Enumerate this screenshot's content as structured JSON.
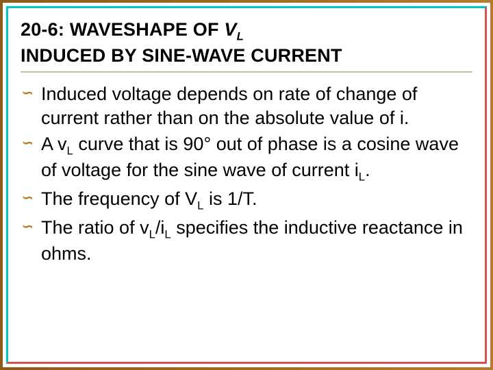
{
  "colors": {
    "outer_gradient_start": "#8c5a1a",
    "outer_gradient_end": "#b87a2e",
    "border_top_left": "#00c8c8",
    "border_bottom_right": "#d94f4f",
    "divider": "#cbbfa3",
    "bullet": "#b07e2e",
    "text": "#000000",
    "background": "#ffffff"
  },
  "typography": {
    "title_fontsize": 27,
    "title_fontweight": "bold",
    "body_fontsize": 27,
    "line_height": 1.28,
    "font_family": "Arial"
  },
  "title": {
    "line1_prefix": "20-6: WAVESHAPE OF ",
    "line1_var": "V",
    "line1_sub": "L",
    "line2": "INDUCED BY SINE-WAVE CURRENT"
  },
  "bullets": [
    {
      "parts": [
        {
          "t": "Induced voltage depends on rate of change of current rather than on the absolute value of i."
        }
      ]
    },
    {
      "parts": [
        {
          "t": "A v"
        },
        {
          "t": "L",
          "sub": true
        },
        {
          "t": " curve that is 90° out of phase is a cosine wave of voltage for the sine wave of current i"
        },
        {
          "t": "L",
          "sub": true
        },
        {
          "t": "."
        }
      ]
    },
    {
      "parts": [
        {
          "t": "The frequency of V"
        },
        {
          "t": "L",
          "sub": true
        },
        {
          "t": " is 1/T."
        }
      ]
    },
    {
      "parts": [
        {
          "t": "The ratio of v"
        },
        {
          "t": "L",
          "sub": true
        },
        {
          "t": "/i"
        },
        {
          "t": "L",
          "sub": true
        },
        {
          "t": " specifies the inductive reactance in ohms."
        }
      ]
    }
  ],
  "bullet_glyph": "∽"
}
